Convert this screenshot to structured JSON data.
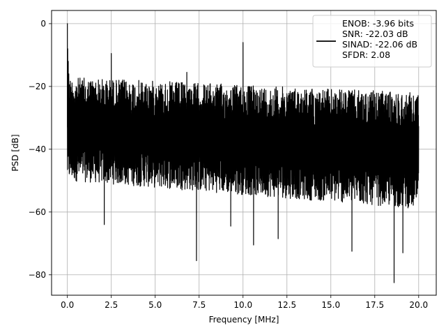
{
  "chart_data": {
    "type": "line",
    "xlabel": "Frequency [MHz]",
    "ylabel": "PSD [dB]",
    "xlim": [
      -0.9,
      21.0
    ],
    "ylim": [
      -86.5,
      4.2
    ],
    "xticks": [
      0.0,
      2.5,
      5.0,
      7.5,
      10.0,
      12.5,
      15.0,
      17.5,
      20.0
    ],
    "xtick_labels": [
      "0.0",
      "2.5",
      "5.0",
      "7.5",
      "10.0",
      "12.5",
      "15.0",
      "17.5",
      "20.0"
    ],
    "yticks": [
      0,
      -20,
      -40,
      -60,
      -80
    ],
    "ytick_labels": [
      "0",
      "−20",
      "−40",
      "−60",
      "−80"
    ],
    "grid": true,
    "legend_position": "top-right",
    "series": [
      {
        "name_lines": [
          "ENOB: -3.96 bits",
          "SNR: -22.03 dB",
          "SINAD: -22.06 dB",
          "SFDR: 2.08"
        ],
        "color": "#000000",
        "x_range": [
          0.0,
          20.0
        ],
        "noise_floor_top_db": [
          -17,
          -22
        ],
        "noise_floor_bottom_db": [
          -50,
          -59
        ],
        "peaks": [
          {
            "x": 0.0,
            "y": 0.0
          },
          {
            "x": 2.5,
            "y": -9.5
          },
          {
            "x": 6.8,
            "y": -15.5
          },
          {
            "x": 10.0,
            "y": -6.0
          }
        ],
        "dips": [
          {
            "x": 2.1,
            "y": -64
          },
          {
            "x": 7.35,
            "y": -75.5
          },
          {
            "x": 9.3,
            "y": -64.5
          },
          {
            "x": 10.6,
            "y": -70.5
          },
          {
            "x": 12.0,
            "y": -68.5
          },
          {
            "x": 16.2,
            "y": -72.5
          },
          {
            "x": 18.6,
            "y": -82.5
          },
          {
            "x": 19.1,
            "y": -73
          }
        ]
      }
    ]
  }
}
